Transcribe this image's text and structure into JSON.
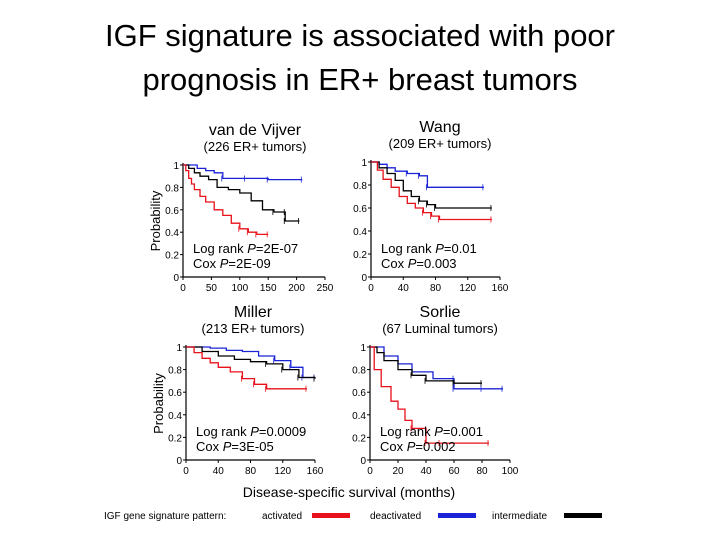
{
  "slide": {
    "title_line1": "IGF signature is associated with poor",
    "title_line2": "prognosis in ER+ breast tumors"
  },
  "figure": {
    "shared_ylabel": "Probability",
    "shared_xlabel": "Disease-specific survival (months)",
    "legend": {
      "prefix": "IGF gene signature pattern:",
      "entries": [
        {
          "label": "activated",
          "color": "#e8101a"
        },
        {
          "label": "deactivated",
          "color": "#1a24d6"
        },
        {
          "label": "intermediate",
          "color": "#000000"
        }
      ]
    }
  },
  "chart_data": [
    {
      "type": "line",
      "title": "van de Vijver",
      "subtitle": "(226 ER+ tumors)",
      "ylabel": "Probability",
      "xlim": [
        0,
        250
      ],
      "ylim": [
        0,
        1
      ],
      "xticks": [
        "0",
        "50",
        "100",
        "150",
        "200",
        "250"
      ],
      "yticks": [
        "0",
        "0.2",
        "0.4",
        "0.6",
        "0.8",
        "1"
      ],
      "annotations": [
        "Log rank P=2E-07",
        "Cox P=2E-09"
      ],
      "series": [
        {
          "name": "deactivated",
          "color": "#1a24d6",
          "points": [
            [
              0,
              1
            ],
            [
              20,
              1
            ],
            [
              25,
              0.97
            ],
            [
              40,
              0.95
            ],
            [
              55,
              0.93
            ],
            [
              70,
              0.88
            ],
            [
              110,
              0.88
            ],
            [
              150,
              0.87
            ],
            [
              210,
              0.87
            ]
          ]
        },
        {
          "name": "intermediate",
          "color": "#000000",
          "points": [
            [
              0,
              1
            ],
            [
              10,
              0.97
            ],
            [
              20,
              0.93
            ],
            [
              30,
              0.9
            ],
            [
              45,
              0.87
            ],
            [
              60,
              0.8
            ],
            [
              80,
              0.78
            ],
            [
              100,
              0.75
            ],
            [
              120,
              0.68
            ],
            [
              140,
              0.6
            ],
            [
              160,
              0.58
            ],
            [
              180,
              0.58
            ],
            [
              180,
              0.5
            ],
            [
              205,
              0.5
            ]
          ]
        },
        {
          "name": "activated",
          "color": "#e8101a",
          "points": [
            [
              0,
              1
            ],
            [
              5,
              0.95
            ],
            [
              10,
              0.88
            ],
            [
              15,
              0.83
            ],
            [
              20,
              0.78
            ],
            [
              30,
              0.72
            ],
            [
              40,
              0.67
            ],
            [
              55,
              0.6
            ],
            [
              70,
              0.55
            ],
            [
              85,
              0.48
            ],
            [
              100,
              0.43
            ],
            [
              115,
              0.4
            ],
            [
              130,
              0.38
            ],
            [
              150,
              0.38
            ]
          ]
        }
      ]
    },
    {
      "type": "line",
      "title": "Wang",
      "subtitle": "(209 ER+ tumors)",
      "ylabel": "",
      "xlim": [
        0,
        160
      ],
      "ylim": [
        0,
        1
      ],
      "xticks": [
        "0",
        "40",
        "80",
        "120",
        "160"
      ],
      "yticks": [
        "0",
        "0.2",
        "0.4",
        "0.6",
        "0.8",
        "1"
      ],
      "annotations": [
        "Log rank P=0.01",
        "Cox P=0.003"
      ],
      "series": [
        {
          "name": "deactivated",
          "color": "#1a24d6",
          "points": [
            [
              0,
              1
            ],
            [
              10,
              0.98
            ],
            [
              20,
              0.95
            ],
            [
              30,
              0.92
            ],
            [
              45,
              0.9
            ],
            [
              60,
              0.88
            ],
            [
              70,
              0.78
            ],
            [
              140,
              0.78
            ]
          ]
        },
        {
          "name": "intermediate",
          "color": "#000000",
          "points": [
            [
              0,
              1
            ],
            [
              10,
              0.95
            ],
            [
              20,
              0.9
            ],
            [
              30,
              0.84
            ],
            [
              40,
              0.75
            ],
            [
              50,
              0.7
            ],
            [
              60,
              0.66
            ],
            [
              70,
              0.63
            ],
            [
              80,
              0.6
            ],
            [
              150,
              0.6
            ]
          ]
        },
        {
          "name": "activated",
          "color": "#e8101a",
          "points": [
            [
              0,
              1
            ],
            [
              8,
              0.93
            ],
            [
              15,
              0.85
            ],
            [
              25,
              0.78
            ],
            [
              35,
              0.7
            ],
            [
              45,
              0.64
            ],
            [
              55,
              0.6
            ],
            [
              65,
              0.56
            ],
            [
              75,
              0.53
            ],
            [
              85,
              0.5
            ],
            [
              150,
              0.5
            ]
          ]
        }
      ]
    },
    {
      "type": "line",
      "title": "Miller",
      "subtitle": "(213 ER+ tumors)",
      "ylabel": "Probability",
      "xlim": [
        0,
        160
      ],
      "ylim": [
        0,
        1
      ],
      "xticks": [
        "0",
        "40",
        "80",
        "120",
        "160"
      ],
      "yticks": [
        "0",
        "0.2",
        "0.4",
        "0.6",
        "0.8",
        "1"
      ],
      "annotations": [
        "Log rank P=0.0009",
        "Cox P=3E-05"
      ],
      "series": [
        {
          "name": "deactivated",
          "color": "#1a24d6",
          "points": [
            [
              0,
              1
            ],
            [
              30,
              0.99
            ],
            [
              50,
              0.97
            ],
            [
              70,
              0.96
            ],
            [
              90,
              0.92
            ],
            [
              110,
              0.88
            ],
            [
              130,
              0.82
            ],
            [
              145,
              0.73
            ],
            [
              160,
              0.73
            ]
          ]
        },
        {
          "name": "intermediate",
          "color": "#000000",
          "points": [
            [
              0,
              1
            ],
            [
              20,
              0.96
            ],
            [
              40,
              0.92
            ],
            [
              60,
              0.89
            ],
            [
              80,
              0.87
            ],
            [
              100,
              0.85
            ],
            [
              120,
              0.8
            ],
            [
              140,
              0.73
            ],
            [
              160,
              0.72
            ]
          ]
        },
        {
          "name": "activated",
          "color": "#e8101a",
          "points": [
            [
              0,
              1
            ],
            [
              10,
              0.95
            ],
            [
              20,
              0.9
            ],
            [
              30,
              0.86
            ],
            [
              40,
              0.82
            ],
            [
              55,
              0.78
            ],
            [
              70,
              0.72
            ],
            [
              85,
              0.67
            ],
            [
              100,
              0.63
            ],
            [
              150,
              0.63
            ]
          ]
        }
      ]
    },
    {
      "type": "line",
      "title": "Sorlie",
      "subtitle": "(67 Luminal tumors)",
      "ylabel": "",
      "xlim": [
        0,
        100
      ],
      "ylim": [
        0,
        1
      ],
      "xticks": [
        "0",
        "20",
        "40",
        "60",
        "80",
        "100"
      ],
      "yticks": [
        "0",
        "0.2",
        "0.4",
        "0.6",
        "0.8",
        "1"
      ],
      "annotations": [
        "Log rank P=0.001",
        "Cox P=0.002"
      ],
      "series": [
        {
          "name": "deactivated",
          "color": "#1a24d6",
          "points": [
            [
              0,
              1
            ],
            [
              10,
              0.92
            ],
            [
              20,
              0.85
            ],
            [
              30,
              0.78
            ],
            [
              45,
              0.72
            ],
            [
              60,
              0.72
            ],
            [
              60,
              0.63
            ],
            [
              80,
              0.63
            ],
            [
              95,
              0.63
            ]
          ]
        },
        {
          "name": "intermediate",
          "color": "#000000",
          "points": [
            [
              0,
              1
            ],
            [
              5,
              0.95
            ],
            [
              10,
              0.88
            ],
            [
              20,
              0.8
            ],
            [
              30,
              0.75
            ],
            [
              40,
              0.7
            ],
            [
              60,
              0.68
            ],
            [
              80,
              0.68
            ]
          ]
        },
        {
          "name": "activated",
          "color": "#e8101a",
          "points": [
            [
              0,
              1
            ],
            [
              3,
              0.8
            ],
            [
              8,
              0.65
            ],
            [
              15,
              0.52
            ],
            [
              20,
              0.45
            ],
            [
              25,
              0.35
            ],
            [
              30,
              0.28
            ],
            [
              40,
              0.15
            ],
            [
              50,
              0.15
            ],
            [
              85,
              0.15
            ]
          ]
        }
      ]
    }
  ]
}
